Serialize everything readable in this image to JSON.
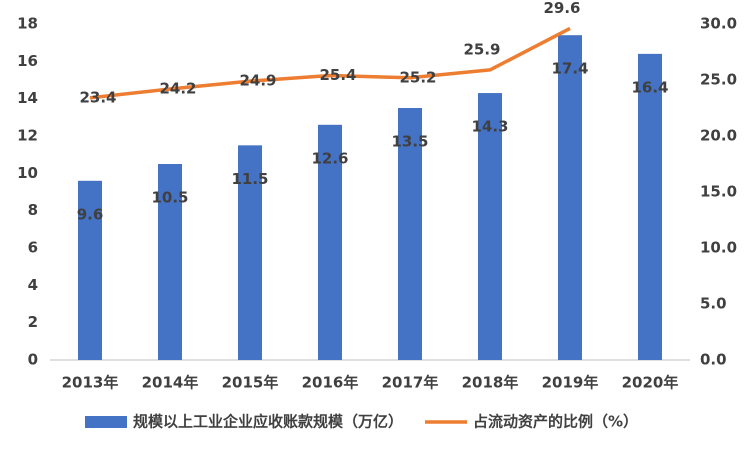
{
  "chart_data": {
    "type": "combo",
    "categories": [
      "2013年",
      "2014年",
      "2015年",
      "2016年",
      "2017年",
      "2018年",
      "2019年",
      "2020年"
    ],
    "series": [
      {
        "name": "规模以上工业企业应收账款规模（万亿）",
        "type": "bar",
        "color": "#4472c4",
        "values": [
          9.6,
          10.5,
          11.5,
          12.6,
          13.5,
          14.3,
          17.4,
          16.4
        ]
      },
      {
        "name": "占流动资产的比例（%）",
        "type": "line",
        "axis": "y2",
        "color": "#ed7d31",
        "values": [
          23.4,
          24.2,
          24.9,
          25.4,
          25.2,
          25.9,
          29.6,
          null
        ]
      }
    ],
    "ylim": [
      0,
      18
    ],
    "yticks": [
      0,
      2,
      4,
      6,
      8,
      10,
      12,
      14,
      16,
      18
    ],
    "y2lim": [
      0,
      30
    ],
    "y2ticks": [
      {
        "value": 0,
        "label": "0.0"
      },
      {
        "value": 5,
        "label": "5.0"
      },
      {
        "value": 10,
        "label": "10.0"
      },
      {
        "value": 15,
        "label": "15.0"
      },
      {
        "value": 20,
        "label": "20.0"
      },
      {
        "value": 25,
        "label": "25.0"
      },
      {
        "value": 30,
        "label": "30.0"
      }
    ],
    "grid": false,
    "legend": "bottom"
  }
}
